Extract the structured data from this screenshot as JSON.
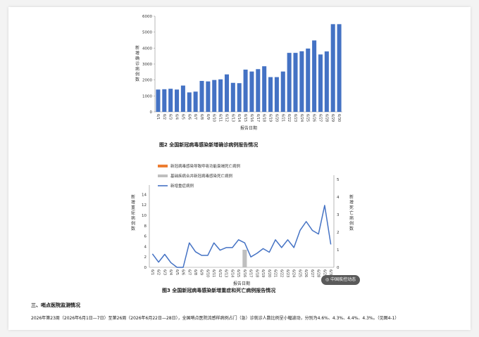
{
  "chart_data": [
    {
      "type": "bar",
      "categories": [
        "6/1",
        "6/2",
        "6/3",
        "6/4",
        "6/5",
        "6/6",
        "6/7",
        "6/8",
        "6/9",
        "6/10",
        "6/11",
        "6/12",
        "6/13",
        "6/14",
        "6/15",
        "6/16",
        "6/17",
        "6/18",
        "6/19",
        "6/20",
        "6/21",
        "6/22",
        "6/23",
        "6/24",
        "6/25",
        "6/26",
        "6/27",
        "6/28",
        "6/29",
        "6/30"
      ],
      "values": [
        1400,
        1420,
        1450,
        1400,
        1650,
        1220,
        1270,
        1940,
        1910,
        2000,
        2040,
        2350,
        1820,
        1800,
        2650,
        2530,
        2680,
        2860,
        2180,
        2180,
        2530,
        3700,
        3700,
        3800,
        3970,
        4480,
        3600,
        3790,
        5500,
        5500
      ],
      "ylabel": "新增确诊病例数",
      "xlabel": "报告日期",
      "ylim": [
        0,
        6000
      ],
      "yticks": [
        0,
        1000,
        2000,
        3000,
        4000,
        5000,
        6000
      ],
      "color": "#4472c4",
      "caption": "图2 全国新冠病毒感染新增确诊病例报告情况"
    },
    {
      "type": "line",
      "categories": [
        "6/1",
        "6/2",
        "6/3",
        "6/4",
        "6/5",
        "6/6",
        "6/7",
        "6/8",
        "6/9",
        "6/10",
        "6/11",
        "6/12",
        "6/13",
        "6/14",
        "6/15",
        "6/16",
        "6/17",
        "6/18",
        "6/19",
        "6/20",
        "6/21",
        "6/22",
        "6/23",
        "6/24",
        "6/25",
        "6/26",
        "6/27",
        "6/28",
        "6/29",
        "6/30"
      ],
      "series": [
        {
          "name": "新冠病毒感染导致呼吸功能衰竭死亡病例",
          "axis": "right",
          "kind": "bar",
          "color": "#ed7d31",
          "values": [
            0,
            0,
            0,
            0,
            0,
            0,
            0,
            0,
            0,
            0,
            0,
            0,
            0,
            0,
            0,
            0,
            0,
            0,
            0,
            0,
            0,
            0,
            0,
            0,
            0,
            0,
            0,
            0,
            0,
            0
          ]
        },
        {
          "name": "基础疾病合并新冠病毒感染死亡病例",
          "axis": "right",
          "kind": "bar",
          "color": "#bfbfbf",
          "values": [
            0,
            0,
            0,
            0,
            0,
            0,
            0,
            0,
            0,
            0,
            0,
            0,
            0,
            0,
            0,
            1,
            0,
            0,
            0,
            0,
            0,
            0,
            0,
            0,
            0,
            0,
            0,
            0,
            0,
            0
          ]
        },
        {
          "name": "新增重症病例",
          "axis": "left",
          "kind": "line",
          "color": "#4472c4",
          "values": [
            2.6,
            1.0,
            2.5,
            0.9,
            0,
            0,
            4.7,
            3.0,
            2.3,
            2.3,
            4.7,
            3.3,
            3.8,
            3.8,
            5.3,
            4.7,
            2.0,
            2.7,
            3.6,
            2.9,
            5.3,
            3.8,
            5.3,
            3.8,
            7.1,
            8.8,
            7.1,
            6.4,
            11.9,
            4.4
          ]
        }
      ],
      "ylabel": "新增重症病例数",
      "y2label": "新增死亡病例数",
      "xlabel": "报告日期",
      "ylim": [
        0,
        15
      ],
      "yticks": [
        0,
        2,
        4,
        6,
        8,
        10,
        12,
        14
      ],
      "y2lim": [
        0,
        5
      ],
      "y2ticks": [
        0,
        1,
        2,
        3,
        4,
        5
      ],
      "caption": "图3 全国新冠病毒感染新增重症和死亡病例报告情况"
    }
  ],
  "watermark": "中国疾控动态",
  "section_title": "三、哨点医院监测情况",
  "paragraph": "2026年第23周（2026年6月1日—7日）至第26周（2026年6月22日—28日），全国哨点医院流感样病例占门（急）诊就诊人数比例呈小幅波动，分别为4.6%、4.3%、4.4%、4.3%。（见图4-1）"
}
